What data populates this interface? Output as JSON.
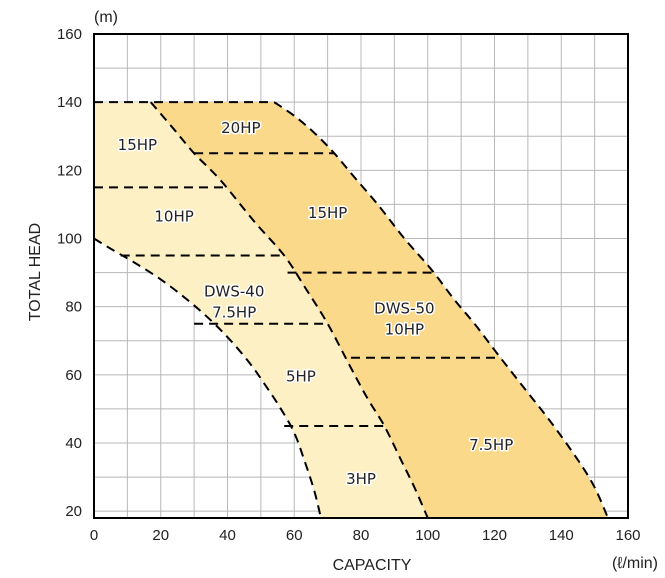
{
  "chart_data": {
    "type": "area",
    "xlabel": "CAPACITY",
    "x_unit": "(ℓ/min)",
    "ylabel": "TOTAL HEAD",
    "y_unit": "(m)",
    "xlim": [
      0,
      160
    ],
    "ylim": [
      18,
      160
    ],
    "x_ticks": [
      "0",
      "20",
      "40",
      "60",
      "80",
      "100",
      "120",
      "140",
      "160"
    ],
    "y_ticks": [
      "20",
      "40",
      "60",
      "80",
      "100",
      "120",
      "140",
      "160"
    ],
    "x_tick_values": [
      0,
      20,
      40,
      60,
      80,
      100,
      120,
      140,
      160
    ],
    "y_tick_values": [
      20,
      40,
      60,
      80,
      100,
      120,
      140,
      160
    ],
    "grid": true,
    "colors": {
      "dws40_fill": "#fdf0c4",
      "dws50_fill": "#fbd98a",
      "grid": "#b8b8b8",
      "boundary": "#000000"
    },
    "regions": [
      {
        "id": "dws40",
        "outline": [
          [
            0,
            140
          ],
          [
            17,
            140
          ],
          [
            24,
            132
          ],
          [
            30,
            125
          ],
          [
            38,
            117
          ],
          [
            48,
            105
          ],
          [
            57,
            95
          ],
          [
            63,
            86
          ],
          [
            70,
            75
          ],
          [
            77,
            62
          ],
          [
            82,
            53
          ],
          [
            87,
            45
          ],
          [
            92,
            35
          ],
          [
            96,
            27
          ],
          [
            100,
            18
          ],
          [
            68,
            18
          ],
          [
            66,
            26
          ],
          [
            63,
            35
          ],
          [
            60,
            43
          ],
          [
            56,
            50
          ],
          [
            52,
            56
          ],
          [
            47,
            63
          ],
          [
            41,
            70
          ],
          [
            35,
            76
          ],
          [
            28,
            82
          ],
          [
            20,
            88
          ],
          [
            12,
            93
          ],
          [
            5,
            97
          ],
          [
            0,
            100
          ]
        ]
      },
      {
        "id": "dws50",
        "outline": [
          [
            17,
            140
          ],
          [
            54,
            140
          ],
          [
            60,
            136
          ],
          [
            66,
            131
          ],
          [
            72,
            125
          ],
          [
            78,
            118
          ],
          [
            85,
            110
          ],
          [
            93,
            100
          ],
          [
            101,
            91
          ],
          [
            108,
            82
          ],
          [
            114,
            75
          ],
          [
            121,
            66
          ],
          [
            129,
            56
          ],
          [
            137,
            46
          ],
          [
            145,
            35
          ],
          [
            150,
            27
          ],
          [
            154,
            18
          ],
          [
            100,
            18
          ],
          [
            96,
            27
          ],
          [
            92,
            35
          ],
          [
            87,
            45
          ],
          [
            82,
            53
          ],
          [
            77,
            62
          ],
          [
            70,
            75
          ],
          [
            63,
            86
          ],
          [
            57,
            95
          ],
          [
            48,
            105
          ],
          [
            38,
            117
          ],
          [
            30,
            125
          ],
          [
            24,
            132
          ]
        ]
      }
    ],
    "divider_lines": [
      [
        [
          30,
          125
        ],
        [
          72,
          125
        ]
      ],
      [
        [
          0,
          115
        ],
        [
          40,
          115
        ]
      ],
      [
        [
          8,
          95
        ],
        [
          57,
          95
        ]
      ],
      [
        [
          58,
          90
        ],
        [
          102,
          90
        ]
      ],
      [
        [
          30,
          75
        ],
        [
          70,
          75
        ]
      ],
      [
        [
          77,
          65
        ],
        [
          122,
          65
        ]
      ],
      [
        [
          57,
          45
        ],
        [
          87,
          45
        ]
      ]
    ],
    "labels": [
      {
        "lines": [
          "20HP"
        ],
        "x": 44,
        "y": 131
      },
      {
        "lines": [
          "15HP"
        ],
        "x": 13,
        "y": 126
      },
      {
        "lines": [
          "15HP"
        ],
        "x": 70,
        "y": 106
      },
      {
        "lines": [
          "10HP"
        ],
        "x": 24,
        "y": 105
      },
      {
        "lines": [
          "DWS-40",
          "7.5HP"
        ],
        "x": 42,
        "y": 83
      },
      {
        "lines": [
          "DWS-50",
          "10HP"
        ],
        "x": 93,
        "y": 78
      },
      {
        "lines": [
          "5HP"
        ],
        "x": 62,
        "y": 58
      },
      {
        "lines": [
          "7.5HP"
        ],
        "x": 119,
        "y": 38
      },
      {
        "lines": [
          "3HP"
        ],
        "x": 80,
        "y": 28
      }
    ]
  }
}
